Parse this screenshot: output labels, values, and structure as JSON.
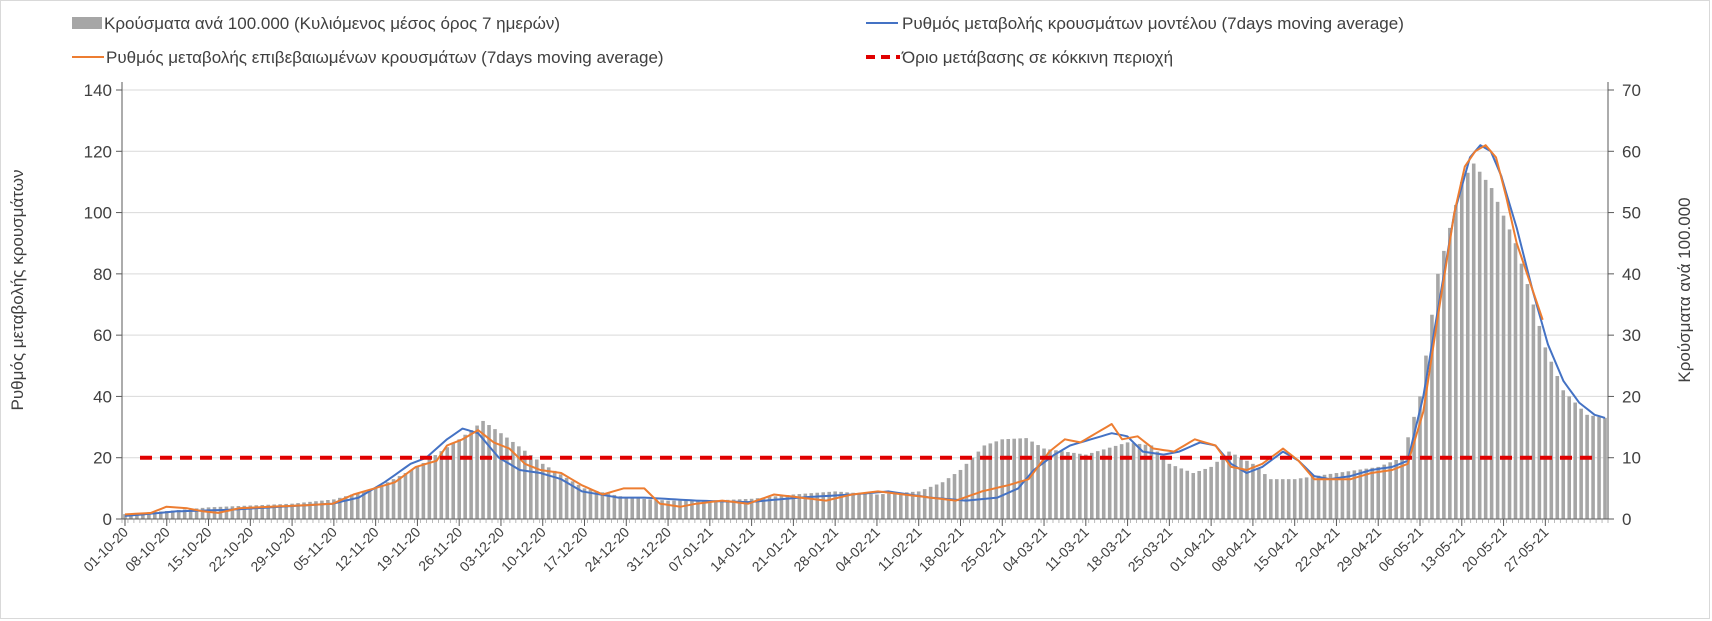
{
  "chart_data": {
    "type": "bar+line",
    "x_tick_labels": [
      "01-10-20",
      "08-10-20",
      "15-10-20",
      "22-10-20",
      "29-10-20",
      "05-11-20",
      "12-11-20",
      "19-11-20",
      "26-11-20",
      "03-12-20",
      "10-12-20",
      "17-12-20",
      "24-12-20",
      "31-12-20",
      "07-01-21",
      "14-01-21",
      "21-01-21",
      "28-01-21",
      "04-02-21",
      "11-02-21",
      "18-02-21",
      "25-02-21",
      "04-03-21",
      "11-03-21",
      "18-03-21",
      "25-03-21",
      "01-04-21",
      "08-04-21",
      "15-04-21",
      "22-04-21",
      "29-04-21",
      "06-05-21",
      "13-05-21",
      "20-05-21",
      "27-05-21"
    ],
    "n_days": 249,
    "y_left": {
      "label": "Ρυθμός μεταβολής κρουσμάτων",
      "min": 0,
      "max": 140,
      "ticks": [
        "0",
        "20",
        "40",
        "60",
        "80",
        "100",
        "120",
        "140"
      ]
    },
    "y_right": {
      "label": "Κρούσματα ανά 100.000",
      "min": 0,
      "max": 70,
      "ticks": [
        "0",
        "10",
        "20",
        "30",
        "40",
        "50",
        "60",
        "70"
      ]
    },
    "legend": {
      "bars": "Κρούσματα ανά 100.000 (Κυλιόμενος μέσος όρος 7 ημερών)",
      "model": "Ρυθμός μεταβολής κρουσμάτων μοντέλου (7days moving average)",
      "confirmed": "Ρυθμός μεταβολής επιβεβαιωμένων κρουσμάτων (7days moving average)",
      "threshold": "Όριο μετάβασης σε κόκκινη περιοχή"
    },
    "threshold_value": 20,
    "series": [
      {
        "name": "Κρούσματα ανά 100.000 (Κυλιόμενος μέσος όρος 7 ημερών)",
        "type": "bar",
        "axis": "right",
        "keypoints": [
          [
            0,
            0.8
          ],
          [
            7,
            1.3
          ],
          [
            14,
            1.9
          ],
          [
            21,
            2.2
          ],
          [
            28,
            2.5
          ],
          [
            35,
            3.2
          ],
          [
            42,
            5
          ],
          [
            49,
            8.5
          ],
          [
            56,
            13
          ],
          [
            60,
            16
          ],
          [
            63,
            14
          ],
          [
            70,
            9
          ],
          [
            77,
            5
          ],
          [
            84,
            3.5
          ],
          [
            91,
            3
          ],
          [
            98,
            3
          ],
          [
            105,
            3.3
          ],
          [
            112,
            4
          ],
          [
            119,
            4.5
          ],
          [
            126,
            4
          ],
          [
            133,
            4.5
          ],
          [
            137,
            6
          ],
          [
            140,
            8
          ],
          [
            144,
            12
          ],
          [
            147,
            13
          ],
          [
            151,
            13.2
          ],
          [
            154,
            11.5
          ],
          [
            161,
            10.5
          ],
          [
            168,
            12.5
          ],
          [
            172,
            12
          ],
          [
            175,
            9
          ],
          [
            179,
            7.5
          ],
          [
            182,
            8.5
          ],
          [
            185,
            11
          ],
          [
            189,
            9
          ],
          [
            192,
            6.5
          ],
          [
            196,
            6.5
          ],
          [
            203,
            7.5
          ],
          [
            210,
            8.5
          ],
          [
            214,
            10
          ],
          [
            217,
            20
          ],
          [
            220,
            40
          ],
          [
            224,
            55
          ],
          [
            226,
            58
          ],
          [
            229,
            54
          ],
          [
            233,
            45
          ],
          [
            236,
            35
          ],
          [
            238,
            28
          ],
          [
            241,
            21
          ],
          [
            245,
            17
          ],
          [
            248,
            16.5
          ]
        ]
      },
      {
        "name": "Ρυθμός μεταβολής κρουσμάτων μοντέλου (7days moving average)",
        "type": "line",
        "axis": "left",
        "color": "#4472c4",
        "keypoints": [
          [
            0,
            1
          ],
          [
            10,
            2.5
          ],
          [
            20,
            3
          ],
          [
            30,
            4
          ],
          [
            40,
            5
          ],
          [
            45,
            7
          ],
          [
            50,
            12
          ],
          [
            55,
            18
          ],
          [
            58,
            20
          ],
          [
            62,
            26
          ],
          [
            65,
            29.5
          ],
          [
            68,
            28
          ],
          [
            72,
            20
          ],
          [
            76,
            16
          ],
          [
            80,
            15
          ],
          [
            84,
            13
          ],
          [
            88,
            9
          ],
          [
            95,
            7
          ],
          [
            100,
            7
          ],
          [
            110,
            6
          ],
          [
            120,
            5.5
          ],
          [
            130,
            7
          ],
          [
            140,
            8
          ],
          [
            147,
            9
          ],
          [
            155,
            7
          ],
          [
            162,
            6
          ],
          [
            168,
            7
          ],
          [
            172,
            10
          ],
          [
            175,
            16
          ],
          [
            179,
            21
          ],
          [
            182,
            24
          ],
          [
            186,
            26
          ],
          [
            190,
            28
          ],
          [
            193,
            27
          ],
          [
            196,
            22
          ],
          [
            200,
            21
          ],
          [
            203,
            22
          ],
          [
            207,
            25
          ],
          [
            210,
            24
          ],
          [
            213,
            18
          ],
          [
            216,
            15
          ],
          [
            219,
            17
          ],
          [
            223,
            22
          ],
          [
            226,
            19
          ],
          [
            229,
            14
          ],
          [
            232,
            13
          ],
          [
            236,
            14
          ],
          [
            240,
            16
          ],
          [
            244,
            17
          ],
          [
            247,
            19
          ],
          [
            250,
            40
          ],
          [
            253,
            70
          ],
          [
            256,
            100
          ],
          [
            259,
            118
          ],
          [
            261,
            122
          ],
          [
            263,
            120
          ],
          [
            265,
            112
          ],
          [
            268,
            95
          ],
          [
            271,
            75
          ],
          [
            274,
            57
          ],
          [
            277,
            45
          ],
          [
            280,
            38
          ],
          [
            283,
            34
          ],
          [
            285,
            33
          ]
        ]
      },
      {
        "name": "Ρυθμός μεταβολής επιβεβαιωμένων κρουσμάτων (7days moving average)",
        "type": "line",
        "axis": "left",
        "color": "#ed7d31",
        "keypoints": [
          [
            0,
            1.5
          ],
          [
            5,
            2
          ],
          [
            8,
            4
          ],
          [
            12,
            3.5
          ],
          [
            15,
            2.5
          ],
          [
            18,
            2
          ],
          [
            22,
            3.5
          ],
          [
            28,
            4
          ],
          [
            35,
            4.5
          ],
          [
            40,
            5
          ],
          [
            44,
            8
          ],
          [
            48,
            10
          ],
          [
            52,
            12
          ],
          [
            56,
            17
          ],
          [
            60,
            19
          ],
          [
            62,
            24
          ],
          [
            65,
            26
          ],
          [
            68,
            29
          ],
          [
            71,
            25
          ],
          [
            74,
            23
          ],
          [
            77,
            18
          ],
          [
            80,
            16
          ],
          [
            84,
            15
          ],
          [
            88,
            11
          ],
          [
            92,
            8
          ],
          [
            96,
            10
          ],
          [
            100,
            10
          ],
          [
            103,
            5
          ],
          [
            107,
            4
          ],
          [
            110,
            5
          ],
          [
            115,
            6
          ],
          [
            120,
            5
          ],
          [
            125,
            8
          ],
          [
            130,
            7
          ],
          [
            135,
            6
          ],
          [
            140,
            8
          ],
          [
            145,
            9
          ],
          [
            150,
            8
          ],
          [
            155,
            7
          ],
          [
            160,
            6
          ],
          [
            165,
            9
          ],
          [
            170,
            11
          ],
          [
            174,
            13
          ],
          [
            178,
            22
          ],
          [
            181,
            26
          ],
          [
            184,
            25
          ],
          [
            187,
            28
          ],
          [
            190,
            31
          ],
          [
            192,
            26
          ],
          [
            195,
            27
          ],
          [
            198,
            23
          ],
          [
            202,
            22
          ],
          [
            206,
            26
          ],
          [
            210,
            24
          ],
          [
            213,
            17
          ],
          [
            216,
            16
          ],
          [
            219,
            18
          ],
          [
            223,
            23
          ],
          [
            226,
            19
          ],
          [
            229,
            13
          ],
          [
            232,
            13
          ],
          [
            236,
            13
          ],
          [
            240,
            15
          ],
          [
            244,
            16
          ],
          [
            247,
            18
          ],
          [
            250,
            35
          ],
          [
            253,
            68
          ],
          [
            256,
            100
          ],
          [
            258,
            115
          ],
          [
            260,
            120
          ],
          [
            262,
            122
          ],
          [
            264,
            118
          ],
          [
            266,
            105
          ],
          [
            268,
            90
          ],
          [
            271,
            75
          ],
          [
            273,
            65
          ]
        ]
      },
      {
        "name": "Όριο μετάβασης σε κόκκινη περιοχή",
        "type": "line",
        "axis": "left",
        "color": "#e00000",
        "style": "dashed",
        "value": 20
      }
    ]
  }
}
